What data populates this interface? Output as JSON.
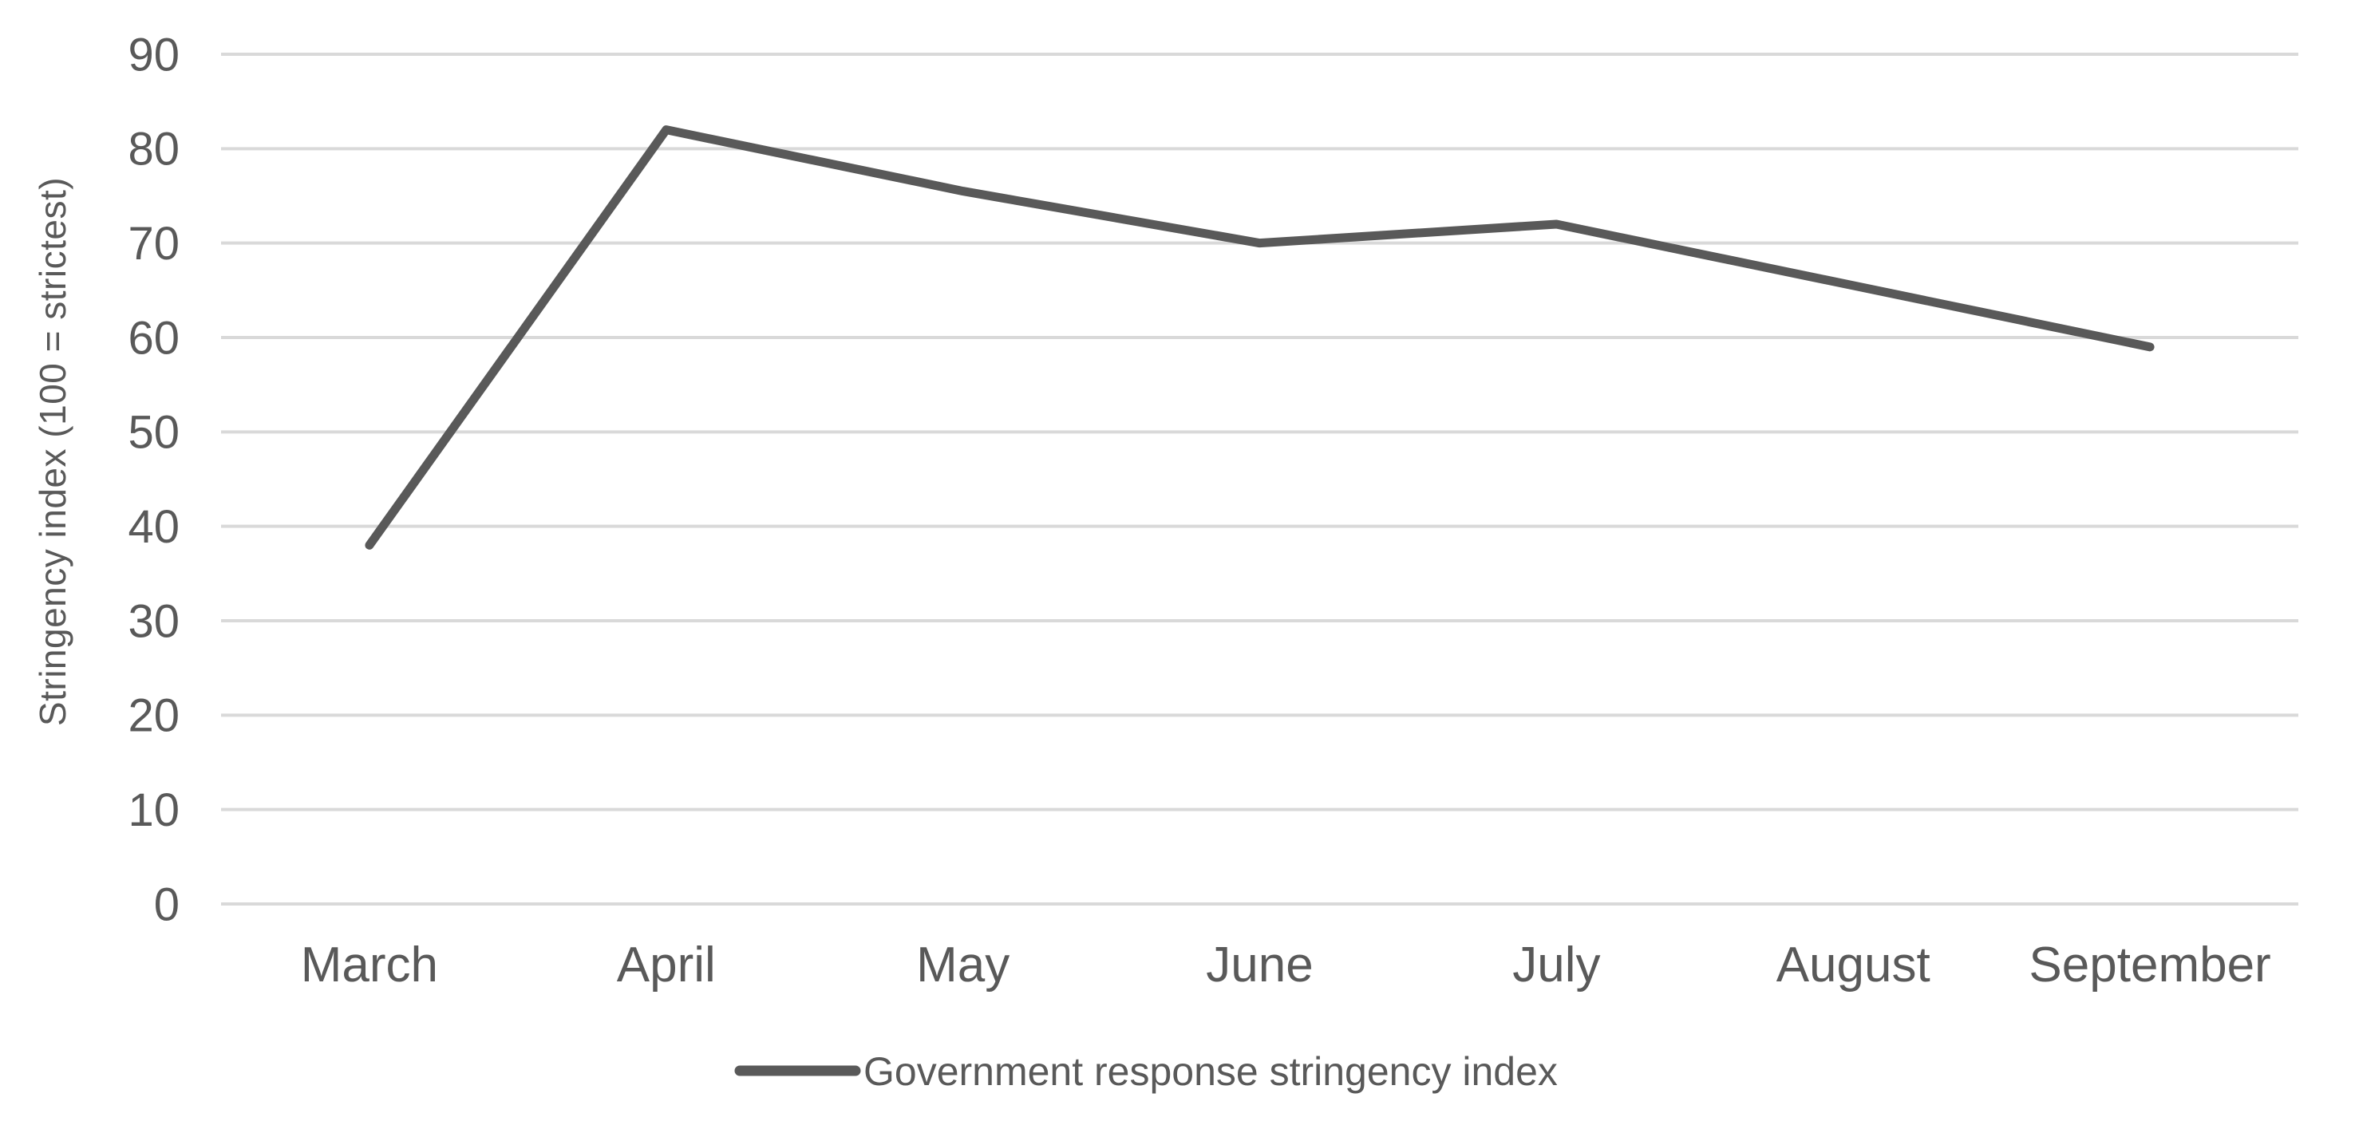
{
  "chart_data": {
    "type": "line",
    "title": "",
    "xlabel": "",
    "ylabel": "Stringency index (100 = strictest)",
    "categories": [
      "March",
      "April",
      "May",
      "June",
      "July",
      "August",
      "September"
    ],
    "series": [
      {
        "name": "Government response stringency index",
        "values": [
          38,
          82,
          75.5,
          70,
          72,
          65.5,
          59
        ]
      }
    ],
    "ylim": [
      0,
      90
    ],
    "yticks": [
      0,
      10,
      20,
      30,
      40,
      50,
      60,
      70,
      80,
      90
    ],
    "grid": "horizontal",
    "legend_position": "bottom",
    "colors": {
      "line": "#595959",
      "gridline": "#d9d9d9",
      "text": "#595959",
      "background": "#ffffff"
    }
  }
}
